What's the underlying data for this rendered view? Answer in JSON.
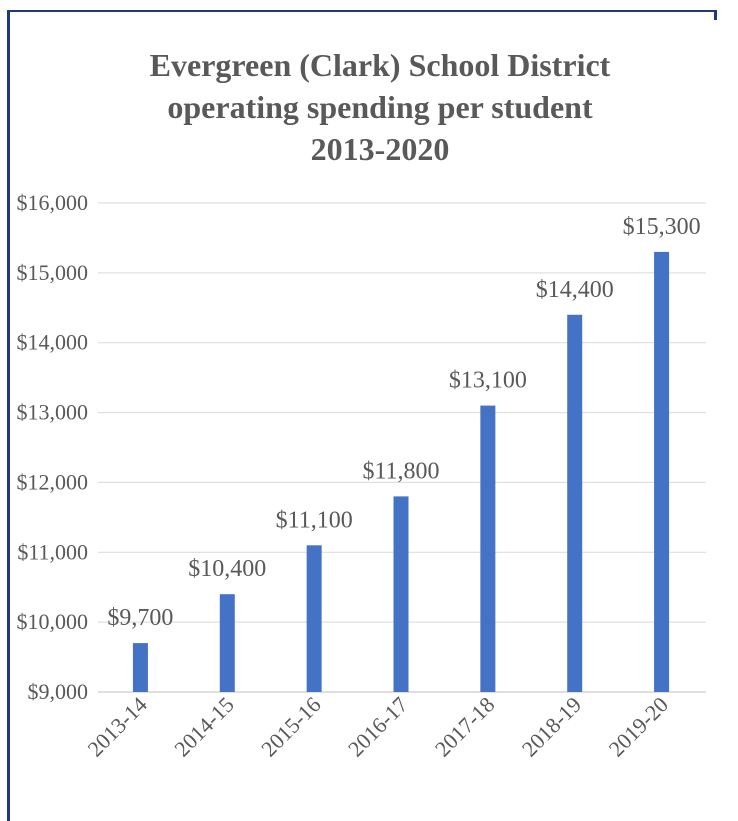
{
  "chart_data": {
    "type": "bar",
    "title_lines": [
      "Evergreen (Clark) School District",
      "operating spending per student",
      "2013-2020"
    ],
    "categories": [
      "2013-14",
      "2014-15",
      "2015-16",
      "2016-17",
      "2017-18",
      "2018-19",
      "2019-20"
    ],
    "values": [
      9700,
      10400,
      11100,
      11800,
      13100,
      14400,
      15300
    ],
    "data_labels": [
      "$9,700",
      "$10,400",
      "$11,100",
      "$11,800",
      "$13,100",
      "$14,400",
      "$15,300"
    ],
    "y_ticks": [
      "$9,000",
      "$10,000",
      "$11,000",
      "$12,000",
      "$13,000",
      "$14,000",
      "$15,000",
      "$16,000"
    ],
    "ylim": [
      9000,
      16000
    ],
    "grid": true,
    "bar_color": "#4472c4",
    "gridline_color": "#d9d9d9",
    "frame_color": "#1f3a7a",
    "text_color": "#595959"
  }
}
